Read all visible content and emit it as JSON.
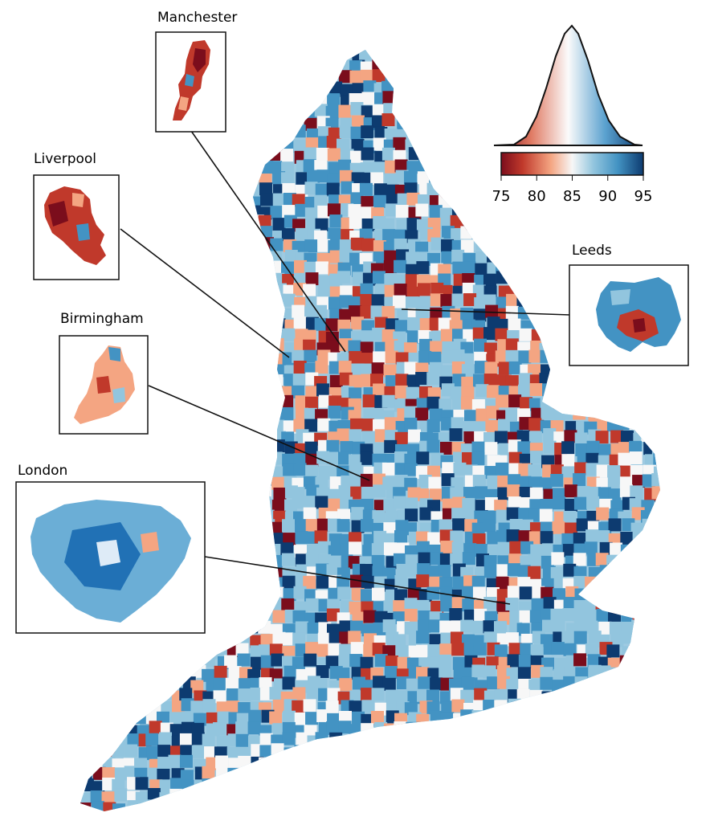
{
  "cities": [
    {
      "key": "manchester",
      "label": "Manchester"
    },
    {
      "key": "liverpool",
      "label": "Liverpool"
    },
    {
      "key": "birmingham",
      "label": "Birmingham"
    },
    {
      "key": "leeds",
      "label": "Leeds"
    },
    {
      "key": "london",
      "label": "London"
    }
  ],
  "legend": {
    "ticks": [
      "75",
      "80",
      "85",
      "90",
      "95"
    ],
    "min": 75,
    "max": 95,
    "colors": [
      "#7b0d1c",
      "#c0392b",
      "#f4a582",
      "#f7f7f7",
      "#92c5de",
      "#4393c3",
      "#0d3b70"
    ]
  }
}
